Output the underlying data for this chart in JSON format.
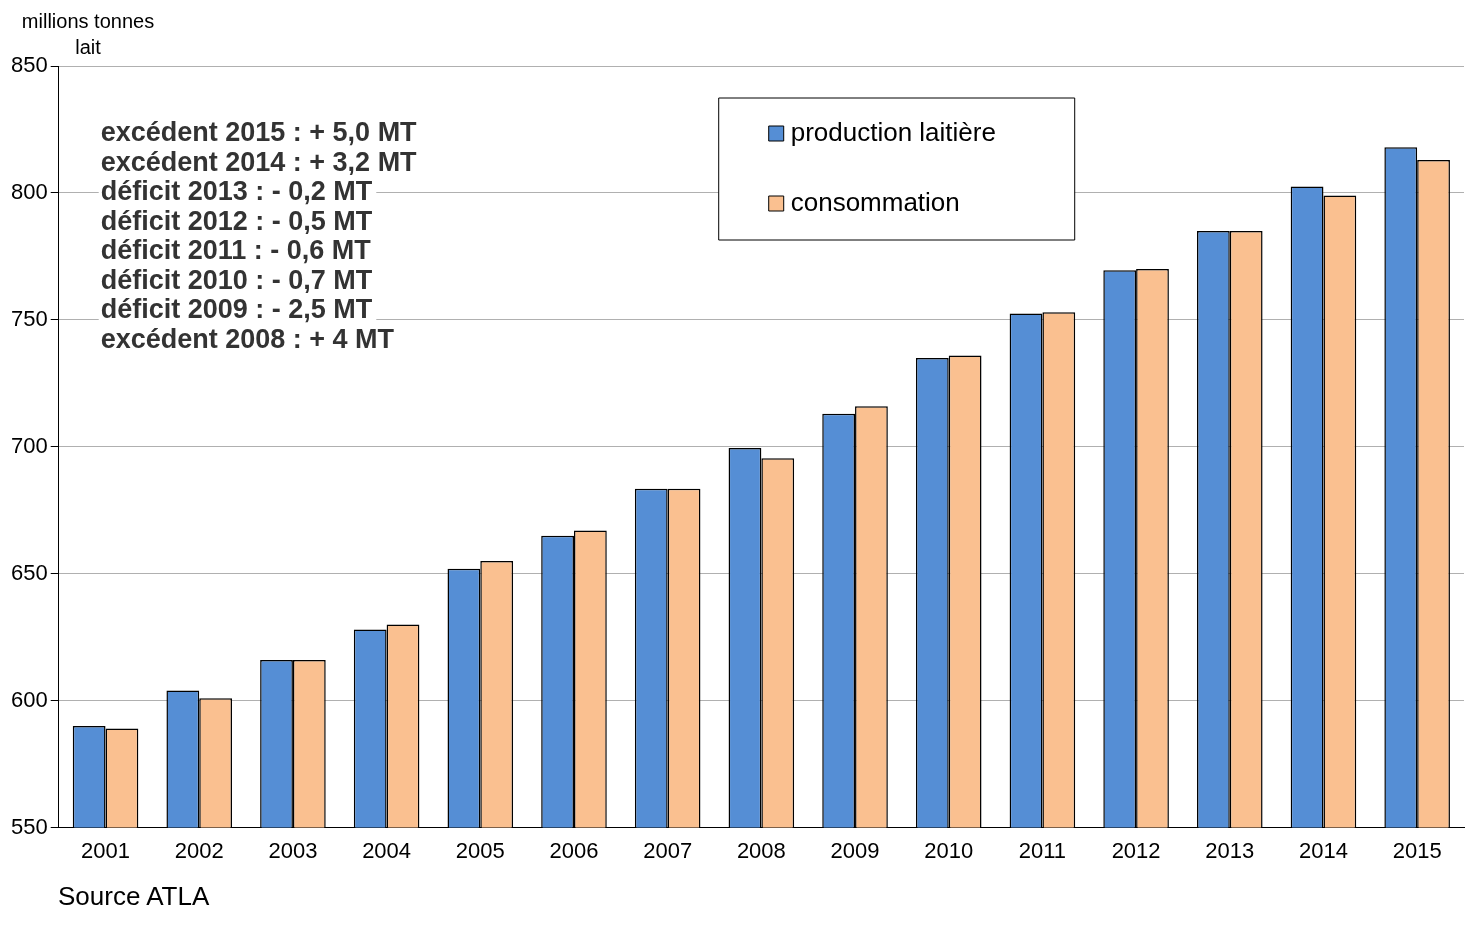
{
  "chart_data": {
    "type": "bar",
    "ylabel": "millions tonnes lait",
    "categories": [
      "2001",
      "2002",
      "2003",
      "2004",
      "2005",
      "2006",
      "2007",
      "2008",
      "2009",
      "2010",
      "2011",
      "2012",
      "2013",
      "2014",
      "2015"
    ],
    "series": [
      {
        "name": "production laitière",
        "color": "#558ed5",
        "values": [
          590,
          604,
          616,
          628,
          652,
          665,
          683.5,
          699.5,
          713,
          735,
          752.5,
          769.5,
          785,
          802.5,
          818
        ]
      },
      {
        "name": "consommation",
        "color": "#fac090",
        "values": [
          589,
          601,
          616,
          630,
          655,
          667,
          683.5,
          695.5,
          716,
          736,
          753,
          770,
          785,
          799,
          813
        ]
      }
    ],
    "ylim": [
      550,
      850
    ],
    "yticks": [
      550,
      600,
      650,
      700,
      750,
      800,
      850
    ],
    "grid": "y",
    "legend": "top right",
    "annotations": [
      "excédent 2015 : + 5,0 MT",
      "excédent 2014 : + 3,2 MT",
      "déficit 2013 : - 0,2 MT",
      "déficit 2012 : - 0,5 MT",
      "déficit 2011 : - 0,6 MT",
      "déficit 2010 : - 0,7 MT",
      "déficit 2009 : - 2,5 MT",
      "excédent 2008 : + 4 MT",
      "Source ATLA"
    ]
  }
}
